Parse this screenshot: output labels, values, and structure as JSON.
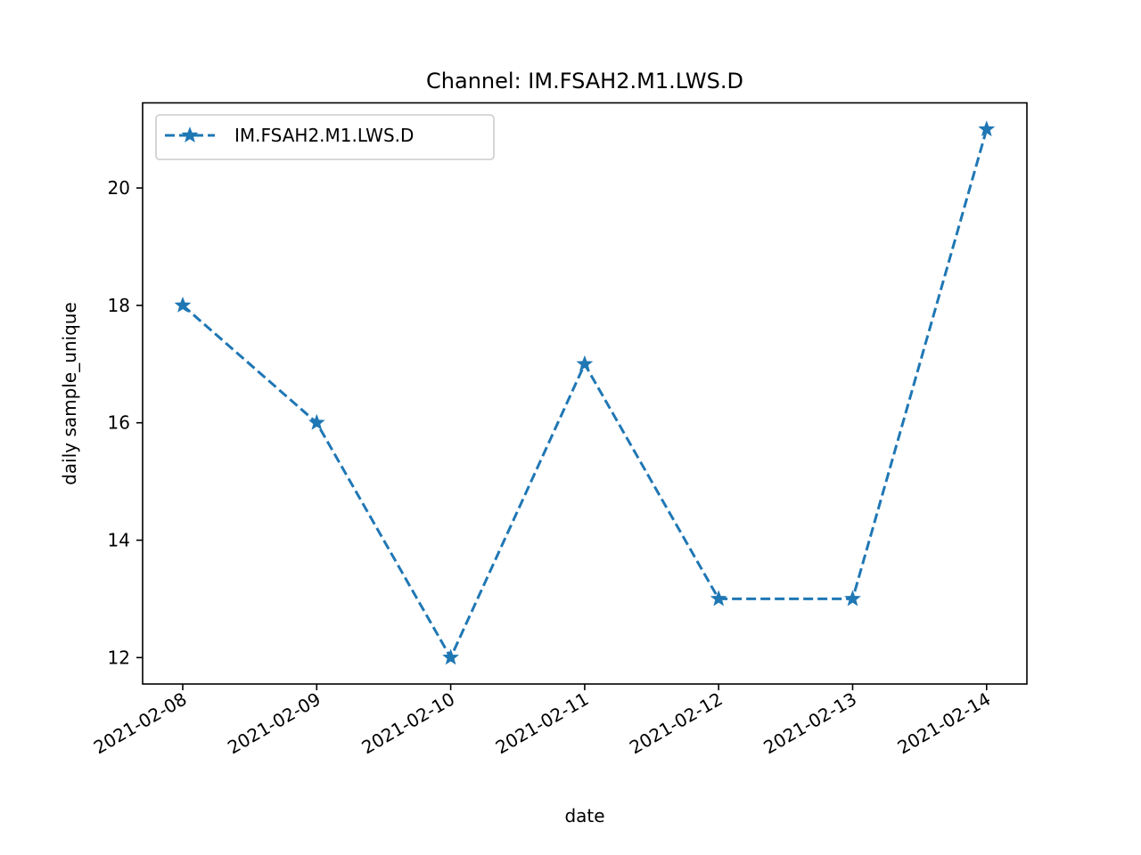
{
  "chart_data": {
    "type": "line",
    "title": "Channel: IM.FSAH2.M1.LWS.D",
    "xlabel": "date",
    "ylabel": "daily sample_unique",
    "categories": [
      "2021-02-08",
      "2021-02-09",
      "2021-02-10",
      "2021-02-11",
      "2021-02-12",
      "2021-02-13",
      "2021-02-14"
    ],
    "y_ticks": [
      12,
      14,
      16,
      18,
      20
    ],
    "ylim": [
      11.55,
      21.45
    ],
    "grid": false,
    "legend_position": "upper left",
    "series": [
      {
        "name": "IM.FSAH2.M1.LWS.D",
        "values": [
          18,
          16,
          12,
          17,
          13,
          13,
          21
        ],
        "color": "#1f77b4",
        "line_style": "dashed",
        "marker": "star"
      }
    ]
  }
}
